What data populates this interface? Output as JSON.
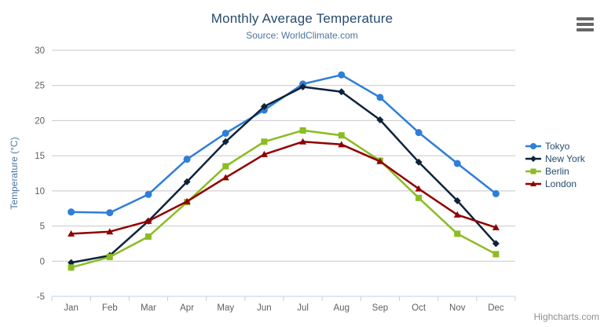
{
  "chart": {
    "title": "Monthly Average Temperature",
    "subtitle": "Source: WorldClimate.com",
    "credits": "Highcharts.com",
    "export_button_icon": "hamburger-menu",
    "colors": {
      "title": "#274b6d",
      "subtitle": "#4d759e",
      "axis_labels": "#606060",
      "axis_line": "#c0d0e0",
      "gridline": "#c8c8c8",
      "y_axis_title": "#4d759e",
      "legend_text": "#274b6d",
      "credits_text": "#909090",
      "export_icon": "#666666"
    }
  },
  "chart_data": {
    "type": "line",
    "title": "Monthly Average Temperature",
    "subtitle": "Source: WorldClimate.com",
    "categories": [
      "Jan",
      "Feb",
      "Mar",
      "Apr",
      "May",
      "Jun",
      "Jul",
      "Aug",
      "Sep",
      "Oct",
      "Nov",
      "Dec"
    ],
    "xlabel": "",
    "ylabel": "Temperature (°C)",
    "ylim": [
      -5,
      30
    ],
    "ytick_step": 5,
    "yticks": [
      -5,
      0,
      5,
      10,
      15,
      20,
      25,
      30
    ],
    "grid": true,
    "legend_position": "right",
    "series": [
      {
        "name": "Tokyo",
        "color": "#2f7ed8",
        "marker": "circle",
        "values": [
          7.0,
          6.9,
          9.5,
          14.5,
          18.2,
          21.5,
          25.2,
          26.5,
          23.3,
          18.3,
          13.9,
          9.6
        ]
      },
      {
        "name": "New York",
        "color": "#0d233a",
        "marker": "diamond",
        "values": [
          -0.2,
          0.8,
          5.7,
          11.3,
          17.0,
          22.0,
          24.8,
          24.1,
          20.1,
          14.1,
          8.6,
          2.5
        ]
      },
      {
        "name": "Berlin",
        "color": "#8bbc21",
        "marker": "square",
        "values": [
          -0.9,
          0.6,
          3.5,
          8.4,
          13.5,
          17.0,
          18.6,
          17.9,
          14.3,
          9.0,
          3.9,
          1.0
        ]
      },
      {
        "name": "London",
        "color": "#910000",
        "marker": "triangle",
        "values": [
          3.9,
          4.2,
          5.7,
          8.5,
          11.9,
          15.2,
          17.0,
          16.6,
          14.2,
          10.3,
          6.6,
          4.8
        ]
      }
    ]
  }
}
